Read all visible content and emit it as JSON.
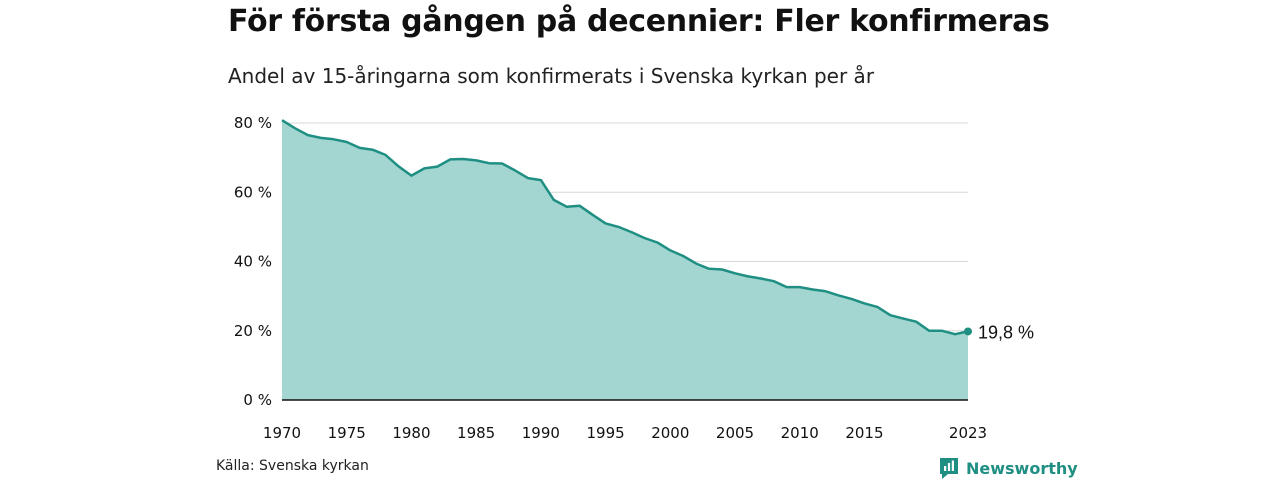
{
  "title": "För första gången på decennier: Fler konfirmeras",
  "subtitle": "Andel av 15-åringarna som konfirmerats i Svenska kyrkan per år",
  "source": "Källa: Svenska kyrkan",
  "brand": "Newsworthy",
  "colors": {
    "area_fill": "#a3d6d0",
    "line": "#1f8f83",
    "grid": "#d9d9d9",
    "axis": "#111111"
  },
  "chart_data": {
    "type": "area",
    "title": "För första gången på decennier: Fler konfirmeras",
    "subtitle": "Andel av 15-åringarna som konfirmerats i Svenska kyrkan per år",
    "xlabel": "",
    "ylabel": "",
    "xlim": [
      1970,
      2023
    ],
    "ylim": [
      0,
      80
    ],
    "y_ticks": [
      0,
      20,
      40,
      60,
      80
    ],
    "y_tick_labels": [
      "0 %",
      "20 %",
      "40 %",
      "60 %",
      "80 %"
    ],
    "x_ticks": [
      1970,
      1975,
      1980,
      1985,
      1990,
      1995,
      2000,
      2005,
      2010,
      2015,
      2023
    ],
    "x_tick_labels": [
      "1970",
      "1975",
      "1980",
      "1985",
      "1990",
      "1995",
      "2000",
      "2005",
      "2010",
      "2015",
      "2023"
    ],
    "grid": true,
    "x": [
      1970,
      1971,
      1972,
      1973,
      1974,
      1975,
      1976,
      1977,
      1978,
      1979,
      1980,
      1981,
      1982,
      1983,
      1984,
      1985,
      1986,
      1987,
      1988,
      1989,
      1990,
      1991,
      1992,
      1993,
      1994,
      1995,
      1996,
      1997,
      1998,
      1999,
      2000,
      2001,
      2002,
      2003,
      2004,
      2005,
      2006,
      2007,
      2008,
      2009,
      2010,
      2011,
      2012,
      2013,
      2014,
      2015,
      2016,
      2017,
      2018,
      2019,
      2020,
      2021,
      2022,
      2023
    ],
    "values": [
      80.8,
      78.5,
      76.5,
      75.7,
      75.3,
      74.5,
      72.8,
      72.3,
      70.8,
      67.5,
      64.8,
      66.9,
      67.4,
      69.5,
      69.6,
      69.2,
      68.4,
      68.3,
      66.3,
      64.1,
      63.5,
      57.8,
      55.8,
      56.1,
      53.5,
      51.0,
      50.0,
      48.5,
      46.8,
      45.5,
      43.2,
      41.6,
      39.4,
      37.9,
      37.7,
      36.6,
      35.7,
      35.1,
      34.3,
      32.6,
      32.6,
      31.9,
      31.4,
      30.2,
      29.2,
      27.9,
      26.9,
      24.5,
      23.5,
      22.6,
      20.0,
      20.0,
      19.0,
      19.8
    ],
    "end_label": "19,8  %"
  }
}
